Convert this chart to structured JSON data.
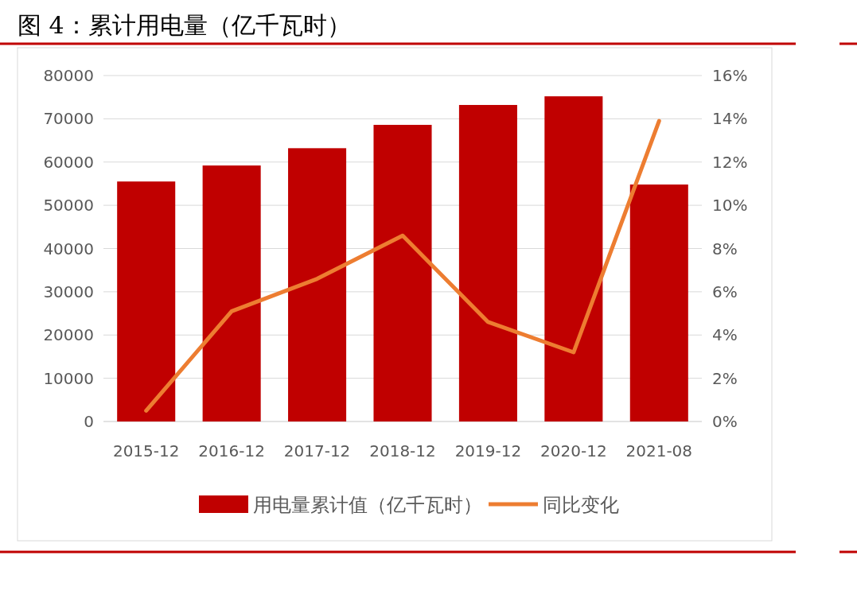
{
  "chart_data": {
    "type": "bar",
    "title": "图 4：累计用电量（亿千瓦时）",
    "categories": [
      "2015-12",
      "2016-12",
      "2017-12",
      "2018-12",
      "2019-12",
      "2020-12",
      "2021-08"
    ],
    "series": [
      {
        "name": "用电量累计值（亿千瓦时）",
        "color": "#c00000",
        "values": [
          55500,
          59200,
          63200,
          68600,
          73200,
          75200,
          54800
        ]
      },
      {
        "name": "同比变化",
        "type": "line",
        "axis": "y2",
        "color": "#ed7d31",
        "values": [
          0.5,
          5.1,
          6.6,
          8.6,
          4.6,
          3.2,
          13.9
        ]
      }
    ],
    "ylim": [
      0,
      80000
    ],
    "yticks": [
      0,
      10000,
      20000,
      30000,
      40000,
      50000,
      60000,
      70000,
      80000
    ],
    "y2lim": [
      0,
      16
    ],
    "y2ticks": [
      {
        "value": 0,
        "label": "0%"
      },
      {
        "value": 2,
        "label": "2%"
      },
      {
        "value": 4,
        "label": "4%"
      },
      {
        "value": 6,
        "label": "6%"
      },
      {
        "value": 8,
        "label": "8%"
      },
      {
        "value": 10,
        "label": "10%"
      },
      {
        "value": 12,
        "label": "12%"
      },
      {
        "value": 14,
        "label": "14%"
      },
      {
        "value": 16,
        "label": "16%"
      }
    ],
    "grid": "y",
    "legend": "bottom"
  }
}
